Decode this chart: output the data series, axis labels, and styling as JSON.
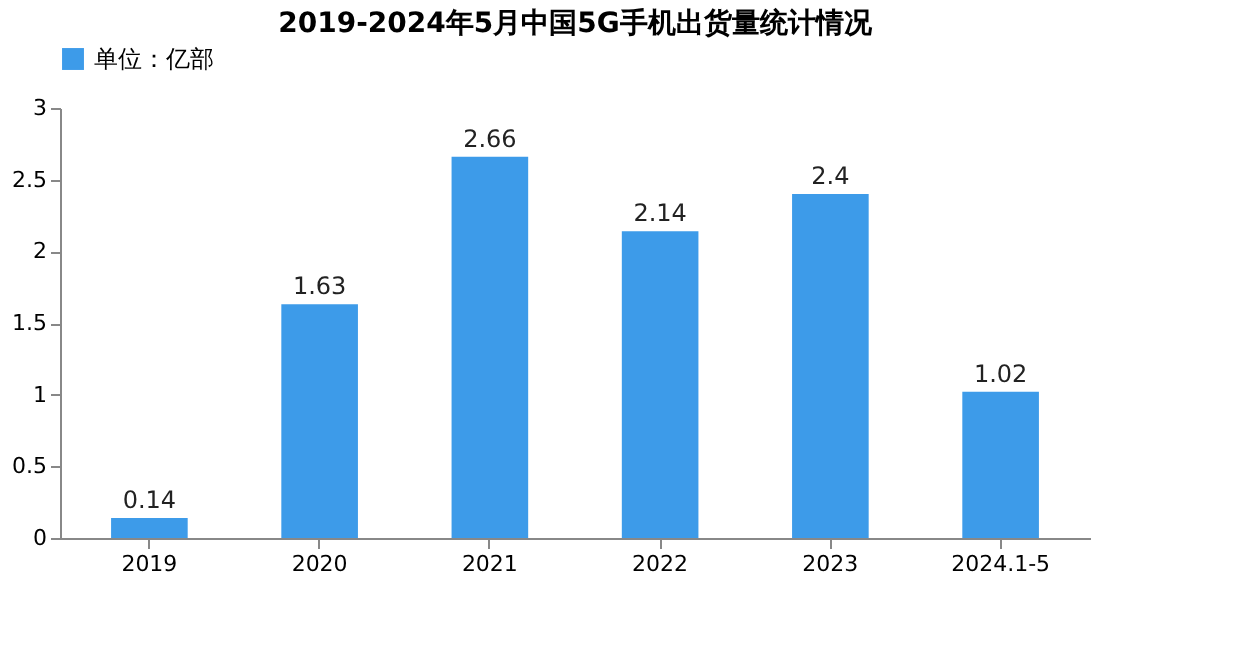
{
  "chart_data": {
    "type": "bar",
    "title": "2019-2024年5月中国5G手机出货量统计情况",
    "categories": [
      "2019",
      "2020",
      "2021",
      "2022",
      "2023",
      "2024.1-5"
    ],
    "series": [
      {
        "name": "单位：亿部",
        "color": "#3d9be9",
        "values": [
          0.14,
          1.63,
          2.66,
          2.14,
          2.4,
          1.02
        ]
      }
    ],
    "ylim": [
      0,
      3
    ],
    "yticks": [
      0,
      0.5,
      1,
      1.5,
      2,
      2.5,
      3
    ],
    "data_labels": true,
    "grid": false,
    "legend": "top"
  }
}
